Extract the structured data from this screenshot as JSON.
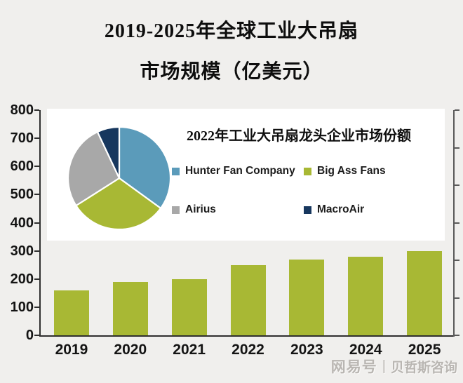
{
  "title": {
    "line1": "2019-2025年全球工业大吊扇",
    "line2": "市场规模（亿美元）"
  },
  "colors": {
    "background": "#f0efed",
    "bar": "#a8b834",
    "axis": "#2f2f2f",
    "secondary_axis": "#5a5a5a",
    "inset_background": "#ffffff",
    "pie": {
      "hunter_fan_company": "#5b9bba",
      "big_ass_fans": "#a8b834",
      "airius": "#a8a8a8",
      "macroair": "#17375e"
    }
  },
  "chart_data": [
    {
      "type": "bar",
      "title": "2019-2025年全球工业大吊扇市场规模（亿美元）",
      "categories": [
        "2019",
        "2020",
        "2021",
        "2022",
        "2023",
        "2024",
        "2025"
      ],
      "values": [
        160,
        190,
        200,
        250,
        270,
        280,
        300
      ],
      "xlabel": "",
      "ylabel": "",
      "ylim": [
        0,
        800
      ],
      "yticks": [
        800,
        700,
        600,
        500,
        400,
        300,
        200,
        100,
        0
      ],
      "right_axis_intervals": 6,
      "grid": false,
      "bar_color": "#a8b834"
    },
    {
      "type": "pie",
      "title": "2022年工业大吊扇龙头企业市场份额",
      "labels": [
        "Hunter Fan Company",
        "Big Ass Fans",
        "Airius",
        "MacroAir"
      ],
      "values": [
        35,
        31,
        27,
        7
      ],
      "colors": [
        "#5b9bba",
        "#a8b834",
        "#a8a8a8",
        "#17375e"
      ],
      "start_angle_deg": 0,
      "legend_position": "right-grid-2x2",
      "data_labels": false
    }
  ],
  "watermark": {
    "brand": "网易号",
    "divider": "|",
    "source": "贝哲斯咨询"
  }
}
